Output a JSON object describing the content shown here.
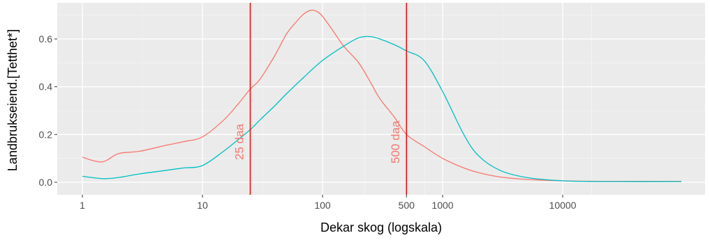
{
  "chart_data": {
    "type": "line",
    "title": "",
    "xlabel": "Dekar skog (logskala)",
    "ylabel": "Landbrukseiend.[Tetthet*]",
    "x_scale": "log10",
    "xlim": [
      1,
      100000
    ],
    "ylim": [
      -0.03,
      0.75
    ],
    "grid": true,
    "x_ticks": [
      {
        "value": 1,
        "label": "1"
      },
      {
        "value": 10,
        "label": "10"
      },
      {
        "value": 100,
        "label": "100"
      },
      {
        "value": 500,
        "label": "500"
      },
      {
        "value": 1000,
        "label": "1000"
      },
      {
        "value": 10000,
        "label": "10000"
      }
    ],
    "y_ticks": [
      {
        "value": 0.0,
        "label": "0.0"
      },
      {
        "value": 0.2,
        "label": "0.2"
      },
      {
        "value": 0.4,
        "label": "0.4"
      },
      {
        "value": 0.6,
        "label": "0.6"
      }
    ],
    "series": [
      {
        "color": "#F8766D",
        "x": [
          1,
          1.45,
          2,
          3,
          5,
          7,
          10,
          15,
          20,
          25,
          30,
          40,
          50,
          60,
          70,
          80,
          90,
          100,
          120,
          150,
          200,
          250,
          300,
          400,
          500,
          700,
          1000,
          1500,
          2000,
          3000,
          5000,
          10000,
          20000,
          100000
        ],
        "values": [
          0.105,
          0.085,
          0.12,
          0.13,
          0.155,
          0.17,
          0.19,
          0.26,
          0.33,
          0.39,
          0.43,
          0.53,
          0.62,
          0.67,
          0.705,
          0.72,
          0.715,
          0.695,
          0.64,
          0.57,
          0.5,
          0.42,
          0.35,
          0.27,
          0.2,
          0.15,
          0.1,
          0.06,
          0.04,
          0.022,
          0.012,
          0.006,
          0.004,
          0.004
        ]
      },
      {
        "color": "#00BFC4",
        "x": [
          1,
          1.5,
          2,
          3,
          5,
          7,
          10,
          15,
          20,
          25,
          30,
          40,
          50,
          70,
          100,
          150,
          200,
          250,
          300,
          400,
          500,
          700,
          1000,
          1500,
          2000,
          3000,
          5000,
          10000,
          20000,
          100000
        ],
        "values": [
          0.025,
          0.015,
          0.02,
          0.035,
          0.05,
          0.06,
          0.07,
          0.13,
          0.18,
          0.22,
          0.26,
          0.32,
          0.37,
          0.44,
          0.51,
          0.57,
          0.605,
          0.61,
          0.6,
          0.575,
          0.55,
          0.51,
          0.38,
          0.2,
          0.11,
          0.05,
          0.02,
          0.006,
          0.003,
          0.003
        ]
      }
    ],
    "vlines": [
      {
        "x": 25,
        "color": "#FF0000",
        "label": "25 daa"
      },
      {
        "x": 500,
        "color": "#FF0000",
        "label": "500 daa"
      }
    ],
    "colors": {
      "panel": "#EBEBEB",
      "grid_major": "#FFFFFF",
      "grid_minor": "#F4F4F4",
      "tick_text": "#4D4D4D",
      "axis_title": "#000000",
      "vline_text": "#F8766D"
    }
  }
}
